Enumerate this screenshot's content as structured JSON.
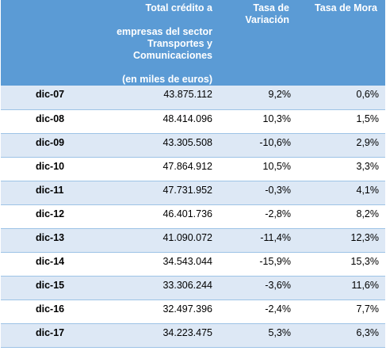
{
  "header": {
    "credit": {
      "line1": "Total crédito a",
      "line2": "empresas del sector",
      "line3": "Transportes y Comunicaciones",
      "line4": "(en miles de euros)"
    },
    "variation": {
      "line1": "Tasa de",
      "line2": "Variación"
    },
    "mora": "Tasa de Mora"
  },
  "rows": [
    {
      "date": "dic-07",
      "credit": "43.875.112",
      "variation": "9,2%",
      "mora": "0,6%"
    },
    {
      "date": "dic-08",
      "credit": "48.414.096",
      "variation": "10,3%",
      "mora": "1,5%"
    },
    {
      "date": "dic-09",
      "credit": "43.305.508",
      "variation": "-10,6%",
      "mora": "2,9%"
    },
    {
      "date": "dic-10",
      "credit": "47.864.912",
      "variation": "10,5%",
      "mora": "3,3%"
    },
    {
      "date": "dic-11",
      "credit": "47.731.952",
      "variation": "-0,3%",
      "mora": "4,1%"
    },
    {
      "date": "dic-12",
      "credit": "46.401.736",
      "variation": "-2,8%",
      "mora": "8,2%"
    },
    {
      "date": "dic-13",
      "credit": "41.090.072",
      "variation": "-11,4%",
      "mora": "12,3%"
    },
    {
      "date": "dic-14",
      "credit": "34.543.044",
      "variation": "-15,9%",
      "mora": "15,3%"
    },
    {
      "date": "dic-15",
      "credit": "33.306.244",
      "variation": "-3,6%",
      "mora": "11,6%"
    },
    {
      "date": "dic-16",
      "credit": "32.497.396",
      "variation": "-2,4%",
      "mora": "7,7%"
    },
    {
      "date": "dic-17",
      "credit": "34.223.475",
      "variation": "5,3%",
      "mora": "6,3%"
    }
  ],
  "colors": {
    "header_bg": "#5b9bd5",
    "header_text": "#ffffff",
    "band_row": "#dde8f5",
    "plain_row": "#ffffff",
    "row_border": "#9dc3e6"
  }
}
